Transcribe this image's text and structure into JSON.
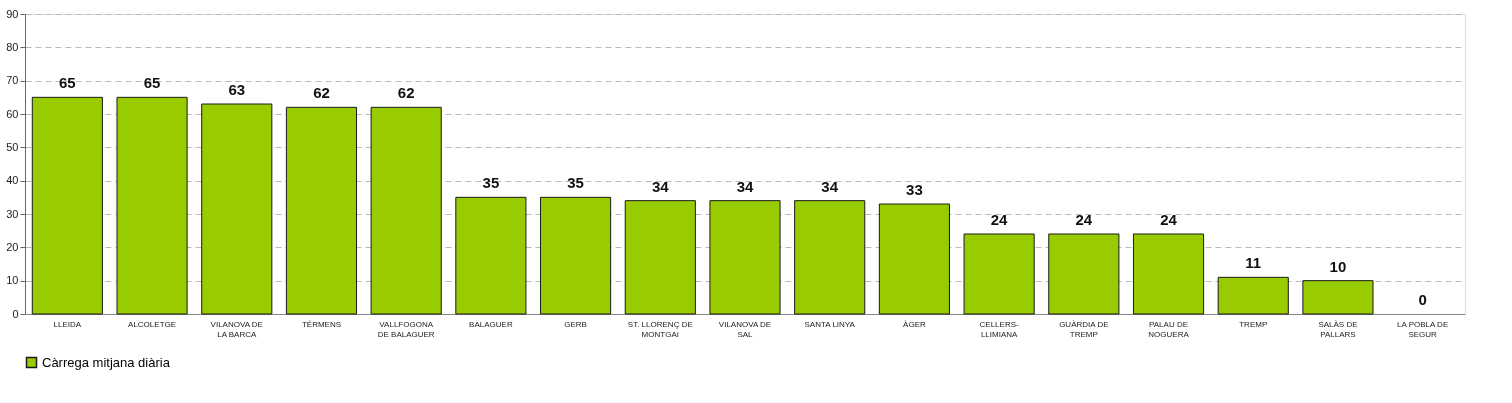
{
  "chart_data": {
    "type": "bar",
    "categories": [
      "LLEIDA",
      "ALCOLETGE",
      "VILANOVA DE\nLA BARCA",
      "TÉRMENS",
      "VALLFOGONA\nDE BALAGUER",
      "BALAGUER",
      "GERB",
      "ST. LLORENÇ DE\nMONTGAI",
      "VILANOVA DE\nSAL",
      "SANTA LINYA",
      "ÀGER",
      "CELLERS-\nLLIMIANA",
      "GUÀRDIA DE\nTREMP",
      "PALAU DE\nNOGUERA",
      "TREMP",
      "SALÀS DE\nPALLARS",
      "LA POBLA DE\nSEGUR"
    ],
    "series": [
      {
        "name": "Càrrega mitjana diària",
        "color": "#99cc00",
        "values": [
          65,
          65,
          63,
          62,
          62,
          35,
          35,
          34,
          34,
          34,
          33,
          24,
          24,
          24,
          11,
          10,
          0
        ]
      }
    ],
    "ylim": [
      0,
      90
    ],
    "yticks": [
      0,
      10,
      20,
      30,
      40,
      50,
      60,
      70,
      80,
      90
    ],
    "grid": "y",
    "legend": "bottom",
    "data_labels": true
  }
}
